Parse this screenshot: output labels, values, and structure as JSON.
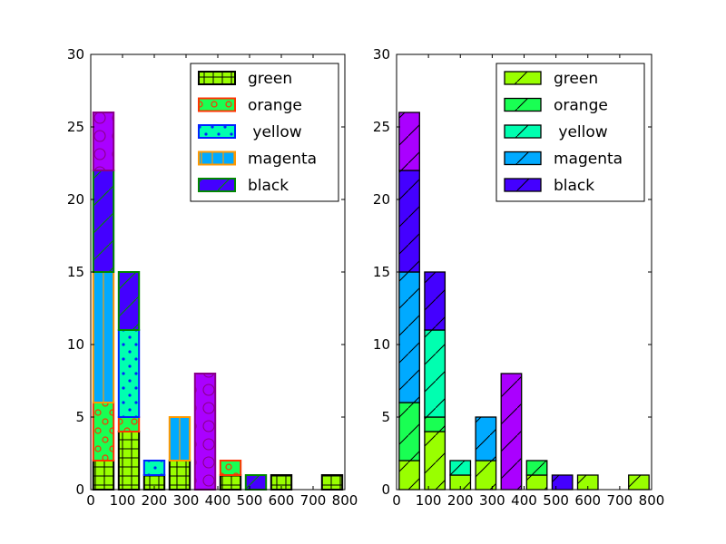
{
  "chart_data": [
    {
      "type": "bar",
      "stacked": true,
      "x_bins": [
        0,
        80,
        160,
        240,
        320,
        400,
        480,
        560,
        640,
        720,
        800
      ],
      "xlim": [
        0,
        800
      ],
      "ylim": [
        0,
        30
      ],
      "xticks": [
        "0",
        "100",
        "200",
        "300",
        "400",
        "500",
        "600",
        "700",
        "800"
      ],
      "yticks": [
        "0",
        "5",
        "10",
        "15",
        "20",
        "25",
        "30"
      ],
      "xlabel": "",
      "ylabel": "",
      "legend_position": "top-right",
      "series": [
        {
          "name": "green",
          "values": [
            2,
            4,
            1,
            2,
            0,
            1,
            0,
            1,
            0,
            1
          ],
          "fill": "#99ff00",
          "edge": "#000000",
          "hatch": "grid"
        },
        {
          "name": "orange",
          "values": [
            4,
            1,
            0,
            0,
            0,
            1,
            0,
            0,
            0,
            0
          ],
          "fill": "#19ff53",
          "edge": "#ff3300",
          "hatch": "circles-red"
        },
        {
          "name": " yellow",
          "values": [
            0,
            6,
            1,
            0,
            0,
            0,
            0,
            0,
            0,
            0
          ],
          "fill": "#00ffb0",
          "edge": "#0022ff",
          "hatch": "dots-blue"
        },
        {
          "name": "magenta",
          "values": [
            9,
            0,
            0,
            3,
            0,
            0,
            0,
            0,
            0,
            0
          ],
          "fill": "#00aaff",
          "edge": "#ff9900",
          "hatch": "vertical-orange"
        },
        {
          "name": "black",
          "values": [
            7,
            4,
            0,
            0,
            0,
            0,
            1,
            0,
            0,
            0
          ],
          "fill": "#4400ff",
          "edge": "#008800",
          "hatch": "diagonal-green"
        },
        {
          "name": "",
          "values": [
            4,
            0,
            0,
            0,
            8,
            0,
            0,
            0,
            0,
            0
          ],
          "fill": "#aa00ff",
          "edge": "#880088",
          "hatch": "circles-purple"
        }
      ]
    },
    {
      "type": "bar",
      "stacked": true,
      "x_bins": [
        0,
        80,
        160,
        240,
        320,
        400,
        480,
        560,
        640,
        720,
        800
      ],
      "xlim": [
        0,
        800
      ],
      "ylim": [
        0,
        30
      ],
      "xticks": [
        "0",
        "100",
        "200",
        "300",
        "400",
        "500",
        "600",
        "700",
        "800"
      ],
      "yticks": [
        "0",
        "5",
        "10",
        "15",
        "20",
        "25",
        "30"
      ],
      "xlabel": "",
      "ylabel": "",
      "legend_position": "top-right",
      "series": [
        {
          "name": "green",
          "values": [
            2,
            4,
            1,
            2,
            0,
            1,
            0,
            1,
            0,
            1
          ],
          "fill": "#99ff00",
          "edge": "#000000",
          "hatch": "diagonal"
        },
        {
          "name": "orange",
          "values": [
            4,
            1,
            0,
            0,
            0,
            1,
            0,
            0,
            0,
            0
          ],
          "fill": "#19ff53",
          "edge": "#000000",
          "hatch": "diagonal"
        },
        {
          "name": " yellow",
          "values": [
            0,
            6,
            1,
            0,
            0,
            0,
            0,
            0,
            0,
            0
          ],
          "fill": "#00ffb0",
          "edge": "#000000",
          "hatch": "diagonal"
        },
        {
          "name": "magenta",
          "values": [
            9,
            0,
            0,
            3,
            0,
            0,
            0,
            0,
            0,
            0
          ],
          "fill": "#00aaff",
          "edge": "#000000",
          "hatch": "diagonal"
        },
        {
          "name": "black",
          "values": [
            7,
            4,
            0,
            0,
            0,
            0,
            1,
            0,
            0,
            0
          ],
          "fill": "#4400ff",
          "edge": "#000000",
          "hatch": "diagonal"
        },
        {
          "name": "",
          "values": [
            4,
            0,
            0,
            0,
            8,
            0,
            0,
            0,
            0,
            0
          ],
          "fill": "#aa00ff",
          "edge": "#000000",
          "hatch": "diagonal"
        }
      ]
    }
  ]
}
